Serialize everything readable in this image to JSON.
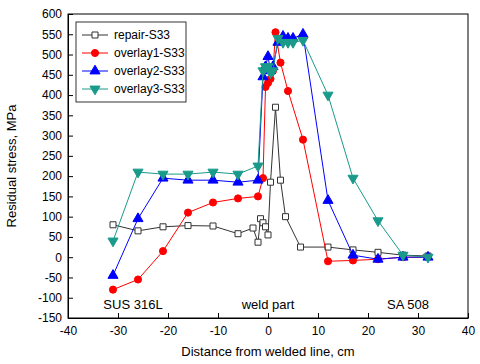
{
  "chart_data": {
    "type": "line",
    "x_label": "Distance from welded line, cm",
    "y_label": "Residual stress, MPa",
    "xlim": [
      -40,
      40
    ],
    "xticks": [
      -40,
      -30,
      -20,
      -10,
      0,
      10,
      20,
      30,
      40
    ],
    "ylim": [
      -150,
      600
    ],
    "yticks": [
      -150,
      -100,
      -50,
      0,
      50,
      100,
      150,
      200,
      250,
      300,
      350,
      400,
      450,
      500,
      550,
      600
    ],
    "legend": "upper left",
    "grid": false,
    "annotations": [
      {
        "text": "SUS 316L",
        "x": -27,
        "y": -128
      },
      {
        "text": "weld part",
        "x": 0,
        "y": -128
      },
      {
        "text": "SA 508",
        "x": 28,
        "y": -128
      }
    ],
    "series": [
      {
        "name": "repair-S33",
        "color": "#333333",
        "marker": "open-square",
        "line_style": "solid",
        "x": [
          -31,
          -26,
          -21,
          -16,
          -11,
          -6,
          -3,
          -2,
          -1.5,
          -1,
          -0.5,
          0,
          0.5,
          1.5,
          2.5,
          3.5,
          6.5,
          12,
          17,
          22,
          27,
          32
        ],
        "values": [
          80,
          65,
          75,
          78,
          77,
          58,
          72,
          37,
          95,
          85,
          75,
          55,
          185,
          370,
          190,
          100,
          25,
          25,
          18,
          12,
          5,
          3
        ]
      },
      {
        "name": "overlay1-S33",
        "color": "#ff0000",
        "marker": "circle",
        "line_style": "solid",
        "x": [
          -31,
          -26,
          -21,
          -16,
          -11,
          -6,
          -2,
          -1,
          -0.5,
          0,
          0.5,
          1,
          1.5,
          2.5,
          4,
          7,
          12,
          17,
          22,
          27,
          32
        ],
        "values": [
          -80,
          -55,
          15,
          110,
          135,
          145,
          150,
          195,
          420,
          430,
          440,
          460,
          555,
          480,
          410,
          290,
          -10,
          -8,
          -5,
          0,
          0
        ]
      },
      {
        "name": "overlay2-S33",
        "color": "#0000ff",
        "marker": "triangle-up",
        "line_style": "solid",
        "x": [
          -31,
          -26,
          -21,
          -16,
          -11,
          -6,
          -2,
          -1,
          -0.5,
          0,
          0.5,
          1,
          2,
          3,
          4,
          5,
          7,
          12,
          17,
          22,
          27,
          32
        ],
        "values": [
          -45,
          95,
          195,
          190,
          190,
          185,
          190,
          445,
          470,
          495,
          460,
          470,
          530,
          545,
          540,
          540,
          550,
          140,
          5,
          -5,
          0,
          0
        ]
      },
      {
        "name": "overlay3-S33",
        "color": "#1a9a8a",
        "marker": "triangle-down",
        "line_style": "solid",
        "x": [
          -31,
          -26,
          -21,
          -16,
          -11,
          -6,
          -2,
          -1,
          -0.5,
          0,
          0.5,
          1,
          2,
          3,
          4,
          5,
          7,
          12,
          17,
          22,
          27,
          32
        ],
        "values": [
          40,
          210,
          205,
          205,
          210,
          205,
          225,
          460,
          470,
          470,
          455,
          460,
          540,
          530,
          530,
          530,
          535,
          400,
          195,
          90,
          5,
          0
        ]
      }
    ]
  }
}
